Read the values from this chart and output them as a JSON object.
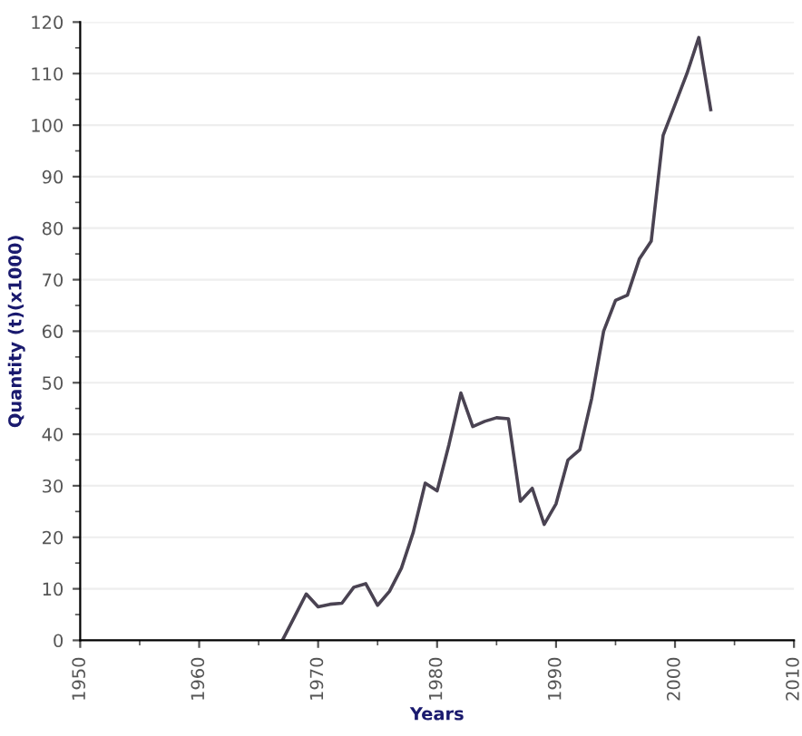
{
  "chart_data": {
    "type": "line",
    "xlabel": "Years",
    "ylabel": "Quantity (t)(x1000)",
    "x": [
      1967,
      1968,
      1969,
      1970,
      1971,
      1972,
      1973,
      1974,
      1975,
      1976,
      1977,
      1978,
      1979,
      1980,
      1981,
      1982,
      1983,
      1984,
      1985,
      1986,
      1987,
      1988,
      1989,
      1990,
      1991,
      1992,
      1993,
      1994,
      1995,
      1996,
      1997,
      1998,
      1999,
      2000,
      2001,
      2002,
      2003
    ],
    "series": [
      {
        "color": "#4a4352",
        "values": [
          0,
          4.5,
          9,
          6.5,
          7,
          7.2,
          10.3,
          11,
          6.8,
          9.5,
          14,
          21,
          30.5,
          29,
          38,
          48,
          41.5,
          42.5,
          43.2,
          43,
          27,
          29.5,
          22.5,
          26.5,
          35,
          37,
          47,
          60,
          66,
          67,
          74,
          77.5,
          98,
          104,
          110,
          117,
          103
        ]
      }
    ],
    "xlim": [
      1950,
      2010
    ],
    "xticks": [
      1950,
      1960,
      1970,
      1980,
      1990,
      2000,
      2010
    ],
    "ylim": [
      0,
      120
    ],
    "yticks": [
      0,
      10,
      20,
      30,
      40,
      50,
      60,
      70,
      80,
      90,
      100,
      110,
      120
    ],
    "grid": "y",
    "legend": false,
    "marker": "none",
    "line_style": "solid"
  }
}
